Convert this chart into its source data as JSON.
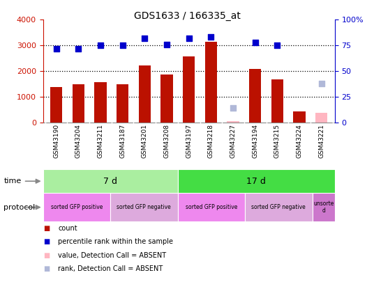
{
  "title": "GDS1633 / 166335_at",
  "samples": [
    "GSM43190",
    "GSM43204",
    "GSM43211",
    "GSM43187",
    "GSM43201",
    "GSM43208",
    "GSM43197",
    "GSM43218",
    "GSM43227",
    "GSM43194",
    "GSM43215",
    "GSM43224",
    "GSM43221"
  ],
  "count_values": [
    1380,
    1480,
    1570,
    1480,
    2220,
    1880,
    2580,
    3150,
    50,
    2080,
    1680,
    430,
    0
  ],
  "rank_values": [
    72,
    72,
    75,
    75,
    82,
    76,
    82,
    83,
    0,
    78,
    75,
    0,
    0
  ],
  "absent_mask_count": [
    false,
    false,
    false,
    false,
    false,
    false,
    false,
    false,
    true,
    false,
    false,
    false,
    true
  ],
  "absent_mask_rank": [
    false,
    false,
    false,
    false,
    false,
    false,
    false,
    false,
    true,
    false,
    false,
    false,
    true
  ],
  "absent_count_values": [
    0,
    0,
    0,
    0,
    0,
    0,
    0,
    0,
    50,
    0,
    0,
    0,
    380
  ],
  "absent_rank_values": [
    0,
    0,
    0,
    0,
    0,
    0,
    0,
    0,
    14,
    0,
    0,
    0,
    38
  ],
  "ylim_left": [
    0,
    4000
  ],
  "ylim_right": [
    0,
    100
  ],
  "yticks_left": [
    0,
    1000,
    2000,
    3000,
    4000
  ],
  "yticks_right": [
    0,
    25,
    50,
    75,
    100
  ],
  "time_groups": [
    {
      "label": "7 d",
      "start": 0,
      "end": 6,
      "color": "#aaeea0"
    },
    {
      "label": "17 d",
      "start": 6,
      "end": 13,
      "color": "#44dd44"
    }
  ],
  "protocol_groups": [
    {
      "label": "sorted GFP positive",
      "start": 0,
      "end": 3,
      "color": "#ee88ee"
    },
    {
      "label": "sorted GFP negative",
      "start": 3,
      "end": 6,
      "color": "#ddaadd"
    },
    {
      "label": "sorted GFP positive",
      "start": 6,
      "end": 9,
      "color": "#ee88ee"
    },
    {
      "label": "sorted GFP negative",
      "start": 9,
      "end": 12,
      "color": "#ddaadd"
    },
    {
      "label": "unsorte\nd",
      "start": 12,
      "end": 13,
      "color": "#cc77cc"
    }
  ],
  "bar_color": "#bb1100",
  "dot_color": "#0000cc",
  "absent_bar_color": "#ffb6c1",
  "absent_dot_color": "#b0b8d8",
  "background_color": "#ffffff",
  "tick_label_color_left": "#cc1100",
  "tick_label_color_right": "#0000cc",
  "label_row_bg": "#cccccc"
}
